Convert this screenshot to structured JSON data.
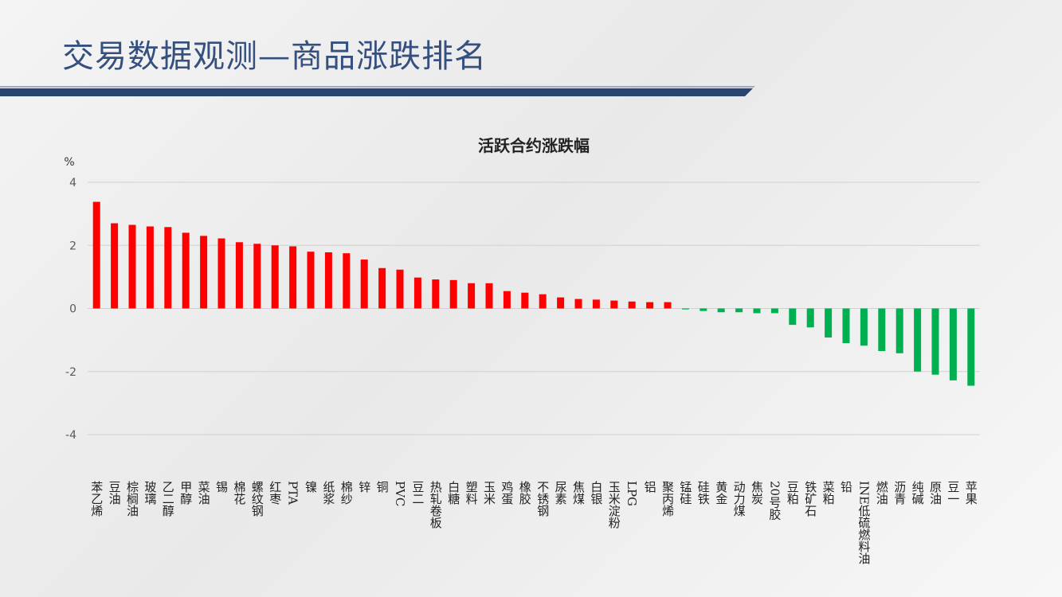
{
  "header": {
    "title": "交易数据观测—商品涨跌排名"
  },
  "chart_data": {
    "type": "bar",
    "title": "活跃合约涨跌幅",
    "y_label": "%",
    "categories": [
      "苯乙烯",
      "豆油",
      "棕榈油",
      "玻璃",
      "乙二醇",
      "甲醇",
      "菜油",
      "锡",
      "棉花",
      "螺纹钢",
      "红枣",
      "PTA",
      "镍",
      "纸浆",
      "棉纱",
      "锌",
      "铜",
      "PVC",
      "豆二",
      "热轧卷板",
      "白糖",
      "塑料",
      "玉米",
      "鸡蛋",
      "橡胶",
      "不锈钢",
      "尿素",
      "焦煤",
      "白银",
      "玉米淀粉",
      "LPG",
      "铝",
      "聚丙烯",
      "锰硅",
      "硅铁",
      "黄金",
      "动力煤",
      "焦炭",
      "20号胶",
      "豆粕",
      "铁矿石",
      "菜粕",
      "铅",
      "INE低硫燃料油",
      "燃油",
      "沥青",
      "纯碱",
      "原油",
      "豆一",
      "苹果"
    ],
    "values": [
      3.38,
      2.7,
      2.65,
      2.6,
      2.58,
      2.4,
      2.3,
      2.22,
      2.1,
      2.05,
      2.0,
      1.97,
      1.8,
      1.78,
      1.75,
      1.55,
      1.28,
      1.23,
      0.98,
      0.92,
      0.9,
      0.8,
      0.8,
      0.55,
      0.5,
      0.45,
      0.35,
      0.3,
      0.28,
      0.25,
      0.22,
      0.2,
      0.2,
      -0.03,
      -0.08,
      -0.12,
      -0.12,
      -0.15,
      -0.15,
      -0.52,
      -0.6,
      -0.92,
      -1.1,
      -1.18,
      -1.35,
      -1.42,
      -2.0,
      -2.1,
      -2.28,
      -2.45
    ],
    "positive_color": "#ff0000",
    "negative_color": "#00b050",
    "ylim": [
      -4,
      4
    ],
    "yticks": [
      -4,
      -2,
      0,
      2,
      4
    ],
    "grid": true
  }
}
